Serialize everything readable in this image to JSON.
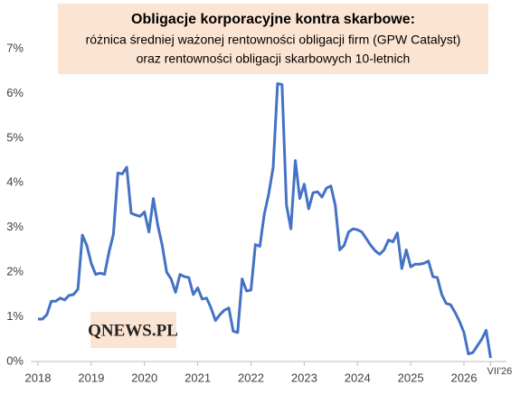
{
  "chart_data": {
    "type": "line",
    "title": "Obligacje korporacyjne kontra skarbowe:",
    "subtitle": [
      "różnica średniej ważonej rentowności obligacji firm (GPW Catalyst)",
      "oraz rentowności obligacji skarbowych 10-letnich"
    ],
    "logo": "QNEWS.PL",
    "categories": [
      "2018",
      null,
      null,
      null,
      null,
      null,
      null,
      null,
      null,
      null,
      null,
      null,
      "2019",
      null,
      null,
      null,
      null,
      null,
      null,
      null,
      null,
      null,
      null,
      null,
      "2020",
      null,
      null,
      null,
      null,
      null,
      null,
      null,
      null,
      null,
      null,
      null,
      "2021",
      null,
      null,
      null,
      null,
      null,
      null,
      null,
      null,
      null,
      null,
      null,
      "2022",
      null,
      null,
      null,
      null,
      null,
      null,
      null,
      null,
      null,
      null,
      null,
      "2023",
      null,
      null,
      null,
      null,
      null,
      null,
      null,
      null,
      null,
      null,
      null,
      "2024",
      null,
      null,
      null,
      null,
      null,
      null,
      null,
      null,
      null,
      null,
      null,
      "2025",
      null,
      null,
      null,
      null,
      null,
      null,
      null,
      null,
      null,
      null,
      null,
      "2026",
      null,
      null,
      null,
      null,
      null,
      "VII'26"
    ],
    "values": [
      0.95,
      0.95,
      1.05,
      1.35,
      1.35,
      1.42,
      1.38,
      1.48,
      1.5,
      1.62,
      2.83,
      2.6,
      2.2,
      1.95,
      1.98,
      1.95,
      2.45,
      2.85,
      4.22,
      4.2,
      4.35,
      3.32,
      3.28,
      3.25,
      3.35,
      2.9,
      3.65,
      3.05,
      2.6,
      2.0,
      1.85,
      1.55,
      1.95,
      1.9,
      1.88,
      1.5,
      1.65,
      1.4,
      1.42,
      1.2,
      0.92,
      1.05,
      1.15,
      1.2,
      0.68,
      0.65,
      1.85,
      1.58,
      1.6,
      2.62,
      2.58,
      3.3,
      3.75,
      4.35,
      6.22,
      6.2,
      3.5,
      2.97,
      4.5,
      3.65,
      3.97,
      3.42,
      3.78,
      3.8,
      3.68,
      3.88,
      3.93,
      3.5,
      2.5,
      2.6,
      2.9,
      2.97,
      2.95,
      2.9,
      2.75,
      2.6,
      2.48,
      2.4,
      2.5,
      2.72,
      2.68,
      2.88,
      2.08,
      2.5,
      2.12,
      2.18,
      2.18,
      2.2,
      2.25,
      1.9,
      1.88,
      1.5,
      1.3,
      1.27,
      1.1,
      0.9,
      0.65,
      0.17,
      0.2,
      0.35,
      0.5,
      0.7,
      0.08
    ],
    "color": "#4472c4",
    "ylim": [
      0,
      7
    ],
    "yticks": [
      {
        "value": 0,
        "label": "0%"
      },
      {
        "value": 1,
        "label": "1%"
      },
      {
        "value": 2,
        "label": "2%"
      },
      {
        "value": 3,
        "label": "3%"
      },
      {
        "value": 4,
        "label": "4%"
      },
      {
        "value": 5,
        "label": "5%"
      },
      {
        "value": 6,
        "label": "6%"
      },
      {
        "value": 7,
        "label": "7%"
      }
    ],
    "grid": false
  }
}
